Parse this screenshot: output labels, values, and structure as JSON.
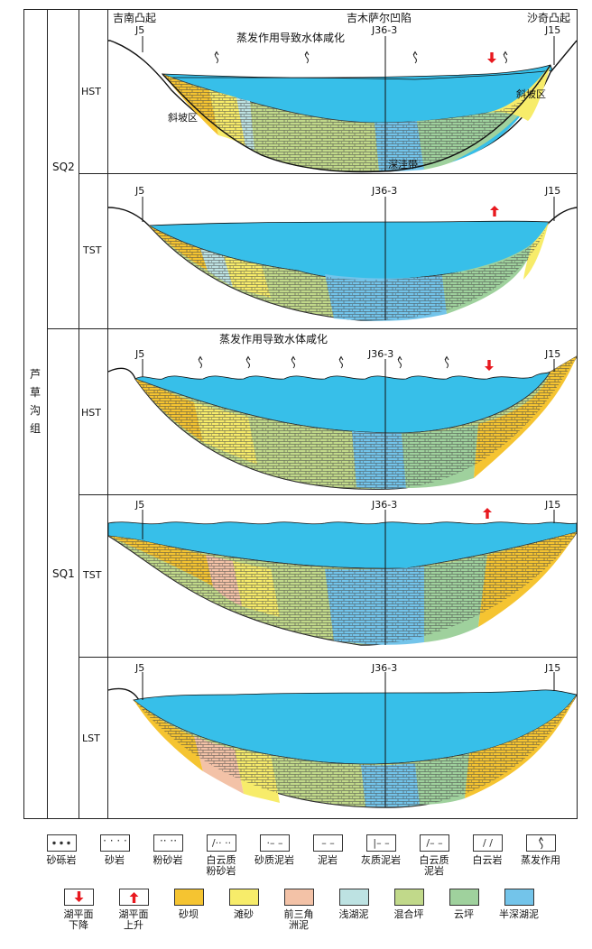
{
  "formation": "芦草沟组",
  "sequences": [
    "SQ2",
    "SQ1"
  ],
  "systems_tracts": [
    "HST",
    "TST",
    "HST",
    "TST",
    "LST"
  ],
  "headers": {
    "left_high": "吉南凸起",
    "center_low": "吉木萨尔凹陷",
    "right_high": "沙奇凸起"
  },
  "wells": {
    "left": "J5",
    "center": "J36-3",
    "right": "J15"
  },
  "annotations": {
    "evaporation_sq2": "蒸发作用导致水体咸化",
    "evaporation_sq1": "蒸发作用导致水体咸化",
    "slope_left": "斜坡区",
    "slope_right": "斜坡区",
    "deep_zone": "深洼带"
  },
  "legend": {
    "lithology": [
      "砂砾岩",
      "砂岩",
      "粉砂岩",
      "白云质\n粉砂岩",
      "砂质泥岩",
      "泥岩",
      "灰质泥岩",
      "白云质\n泥岩",
      "白云岩",
      "蒸发作用"
    ],
    "facies": [
      "湖平面\n下降",
      "湖平面\n上升",
      "砂坝",
      "滩砂",
      "前三角\n洲泥",
      "浅湖泥",
      "混合坪",
      "云坪",
      "半深湖泥"
    ]
  },
  "colors": {
    "water": "#37bfe9",
    "sand_bar": "#f5c431",
    "beach_sand": "#f7ec6a",
    "prodelta_mud": "#f3c2a7",
    "shallow_lake_mud": "#bde2e2",
    "mixed_flat": "#c1d98a",
    "dolomite_flat": "#9fd19d",
    "semi_deep_lake_mud": "#73c4ea",
    "arrow": "#e8191f"
  }
}
